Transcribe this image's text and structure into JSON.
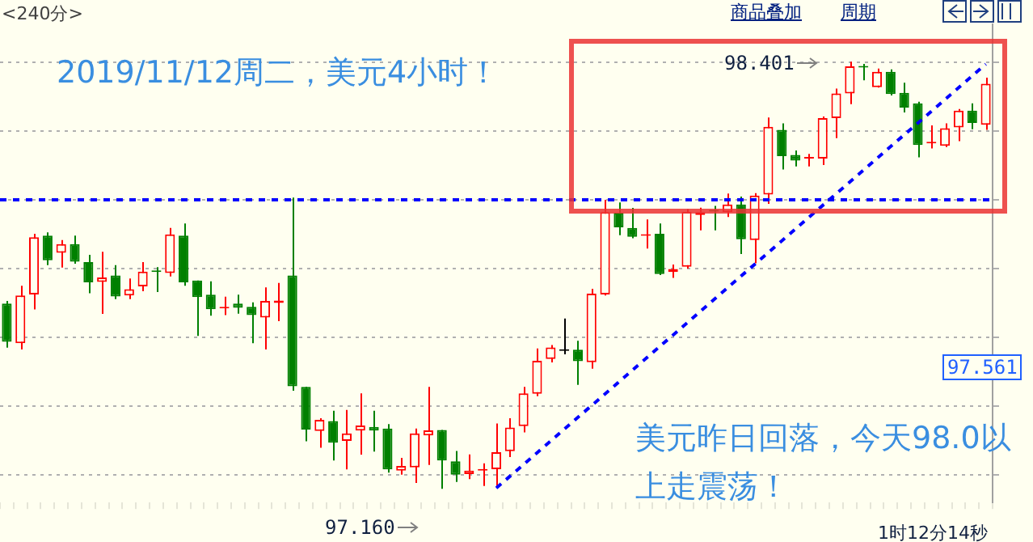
{
  "chart_data": {
    "type": "candlestick",
    "title": "2019/11/12周二，美元4小时！",
    "categories": [
      null,
      null,
      null,
      null,
      null,
      null,
      null,
      null,
      null,
      null,
      null,
      null,
      null,
      null,
      null,
      null,
      null,
      null,
      null,
      null,
      null,
      null,
      null,
      null,
      null,
      null,
      null,
      null,
      null,
      null,
      null,
      null,
      null,
      null,
      null,
      null,
      null,
      null,
      null,
      null,
      null,
      null,
      null,
      null,
      null,
      null,
      null,
      null,
      null,
      null,
      null,
      null,
      null,
      null,
      null,
      null,
      null,
      null,
      null,
      null,
      null,
      null,
      null,
      null,
      null,
      null,
      null,
      null,
      null,
      null,
      null,
      null,
      null
    ],
    "ohlc": [
      [
        97.698,
        97.706,
        97.57,
        97.587
      ],
      [
        97.583,
        97.75,
        97.565,
        97.722
      ],
      [
        97.725,
        97.901,
        97.681,
        97.891
      ],
      [
        97.896,
        97.905,
        97.81,
        97.824
      ],
      [
        97.846,
        97.883,
        97.803,
        97.871
      ],
      [
        97.871,
        97.896,
        97.814,
        97.82
      ],
      [
        97.819,
        97.84,
        97.728,
        97.76
      ],
      [
        97.761,
        97.849,
        97.668,
        97.774
      ],
      [
        97.78,
        97.81,
        97.711,
        97.719
      ],
      [
        97.722,
        97.771,
        97.711,
        97.74
      ],
      [
        97.748,
        97.819,
        97.734,
        97.791
      ],
      [
        97.792,
        97.804,
        97.732,
        97.79
      ],
      [
        97.787,
        97.918,
        97.777,
        97.899
      ],
      [
        97.896,
        97.931,
        97.75,
        97.76
      ],
      [
        97.765,
        97.765,
        97.604,
        97.717
      ],
      [
        97.724,
        97.763,
        97.663,
        97.682
      ],
      [
        97.684,
        97.718,
        97.665,
        97.688
      ],
      [
        97.698,
        97.724,
        97.669,
        97.686
      ],
      [
        97.689,
        97.702,
        97.583,
        97.665
      ],
      [
        97.658,
        97.745,
        97.565,
        97.706
      ],
      [
        97.7,
        97.758,
        97.647,
        97.707
      ],
      [
        97.78,
        98.006,
        97.445,
        97.458
      ],
      [
        97.456,
        97.456,
        97.298,
        97.332
      ],
      [
        97.328,
        97.365,
        97.279,
        97.36
      ],
      [
        97.357,
        97.387,
        97.242,
        97.294
      ],
      [
        97.299,
        97.389,
        97.216,
        97.321
      ],
      [
        97.329,
        97.437,
        97.259,
        97.344
      ],
      [
        97.34,
        97.387,
        97.268,
        97.329
      ],
      [
        97.335,
        97.348,
        97.207,
        97.216
      ],
      [
        97.213,
        97.25,
        97.201,
        97.226
      ],
      [
        97.222,
        97.335,
        97.177,
        97.321
      ],
      [
        97.315,
        97.456,
        97.229,
        97.33
      ],
      [
        97.331,
        97.331,
        97.16,
        97.242
      ],
      [
        97.24,
        97.27,
        97.18,
        97.201
      ],
      [
        97.203,
        97.26,
        97.188,
        97.213
      ],
      [
        97.213,
        97.234,
        97.168,
        97.216
      ],
      [
        97.217,
        97.35,
        97.164,
        97.266
      ],
      [
        97.269,
        97.365,
        97.252,
        97.338
      ],
      [
        97.342,
        97.456,
        97.324,
        97.437
      ],
      [
        97.436,
        97.568,
        97.429,
        97.532
      ],
      [
        97.537,
        97.578,
        97.527,
        97.571
      ],
      [
        97.561,
        97.655,
        97.551,
        97.561
      ],
      [
        97.564,
        97.59,
        97.462,
        97.531
      ],
      [
        97.528,
        97.741,
        97.509,
        97.727
      ],
      [
        97.725,
        98.0,
        97.722,
        97.964
      ],
      [
        97.962,
        97.992,
        97.897,
        97.92
      ],
      [
        97.918,
        97.976,
        97.888,
        97.892
      ],
      [
        97.895,
        97.943,
        97.858,
        97.899
      ],
      [
        97.901,
        97.931,
        97.781,
        97.784
      ],
      [
        97.79,
        97.812,
        97.773,
        97.799
      ],
      [
        97.805,
        97.973,
        97.8,
        97.965
      ],
      [
        97.956,
        97.977,
        97.911,
        97.964
      ],
      [
        97.97,
        97.982,
        97.911,
        97.966
      ],
      [
        97.964,
        98.018,
        97.95,
        97.986
      ],
      [
        97.986,
        98.009,
        97.842,
        97.885
      ],
      [
        97.883,
        98.019,
        97.815,
        98.012
      ],
      [
        98.015,
        98.239,
        97.988,
        98.212
      ],
      [
        98.203,
        98.222,
        98.088,
        98.127
      ],
      [
        98.13,
        98.143,
        98.097,
        98.114
      ],
      [
        98.12,
        98.133,
        98.097,
        98.124
      ],
      [
        98.12,
        98.242,
        98.101,
        98.237
      ],
      [
        98.237,
        98.323,
        98.179,
        98.309
      ],
      [
        98.309,
        98.401,
        98.278,
        98.388
      ],
      [
        98.388,
        98.395,
        98.347,
        98.384
      ],
      [
        98.327,
        98.381,
        98.326,
        98.372
      ],
      [
        98.372,
        98.379,
        98.303,
        98.307
      ],
      [
        98.311,
        98.34,
        98.254,
        98.268
      ],
      [
        98.28,
        98.285,
        98.123,
        98.159
      ],
      [
        98.164,
        98.216,
        98.149,
        98.167
      ],
      [
        98.157,
        98.222,
        98.153,
        98.208
      ],
      [
        98.21,
        98.264,
        98.17,
        98.259
      ],
      [
        98.259,
        98.28,
        98.205,
        98.223
      ],
      [
        98.218,
        98.355,
        98.203,
        98.337
      ]
    ],
    "colors": [
      "#008000",
      "#ff0000",
      "#ff0000",
      "#008000",
      "#ff0000",
      "#008000",
      "#008000",
      "#ff0000",
      "#008000",
      "#ff0000",
      "#ff0000",
      "#008000",
      "#ff0000",
      "#008000",
      "#008000",
      "#008000",
      "#ff0000",
      "#008000",
      "#008000",
      "#ff0000",
      "#ff0000",
      "#008000",
      "#008000",
      "#ff0000",
      "#008000",
      "#ff0000",
      "#ff0000",
      "#008000",
      "#008000",
      "#ff0000",
      "#ff0000",
      "#ff0000",
      "#008000",
      "#008000",
      "#ff0000",
      "#ff0000",
      "#ff0000",
      "#ff0000",
      "#ff0000",
      "#ff0000",
      "#ff0000",
      "#000000",
      "#008000",
      "#ff0000",
      "#ff0000",
      "#008000",
      "#008000",
      "#ff0000",
      "#008000",
      "#ff0000",
      "#ff0000",
      "#ff0000",
      "#008000",
      "#ff0000",
      "#008000",
      "#ff0000",
      "#ff0000",
      "#008000",
      "#008000",
      "#ff0000",
      "#ff0000",
      "#ff0000",
      "#ff0000",
      "#008000",
      "#ff0000",
      "#008000",
      "#008000",
      "#008000",
      "#ff0000",
      "#ff0000",
      "#ff0000",
      "#008000",
      "#ff0000"
    ],
    "series": [
      {
        "type": "line",
        "color": "#0000ff",
        "line_style": "dashed",
        "values": [
          null,
          null,
          null,
          null,
          null,
          null,
          null,
          null,
          null,
          null,
          null,
          null,
          null,
          null,
          null,
          null,
          null,
          null,
          null,
          null,
          null,
          null,
          null,
          null,
          null,
          null,
          null,
          null,
          null,
          null,
          null,
          null,
          null,
          null,
          null,
          null,
          97.162,
          null,
          null,
          null,
          null,
          null,
          null,
          null,
          null,
          null,
          null,
          null,
          null,
          null,
          null,
          null,
          null,
          null,
          null,
          null,
          null,
          null,
          null,
          null,
          null,
          null,
          null,
          null,
          null,
          null,
          null,
          null,
          null,
          null,
          null,
          null,
          98.394
        ]
      }
    ],
    "yticks": [
      {
        "value": 97.2,
        "label": null
      },
      {
        "value": 97.4,
        "label": null
      },
      {
        "value": 97.6,
        "label": null
      },
      {
        "value": 97.8,
        "label": null
      },
      {
        "value": 98.0,
        "label": null
      },
      {
        "value": 98.2,
        "label": null
      },
      {
        "value": 98.4,
        "label": null
      }
    ],
    "ylim": [
      97.12,
      98.51
    ],
    "grid": "y",
    "ref_lines": [
      {
        "axis": "y",
        "value": 98.0,
        "color": "#0000ff",
        "line_style": "dashed"
      }
    ],
    "annotations": [
      "美元昨日回落，今天98.0以上走震荡！",
      "98.401",
      "97.160",
      "97.561",
      "<240分>",
      "商品叠加",
      "周期",
      "1时12分14秒"
    ]
  }
}
